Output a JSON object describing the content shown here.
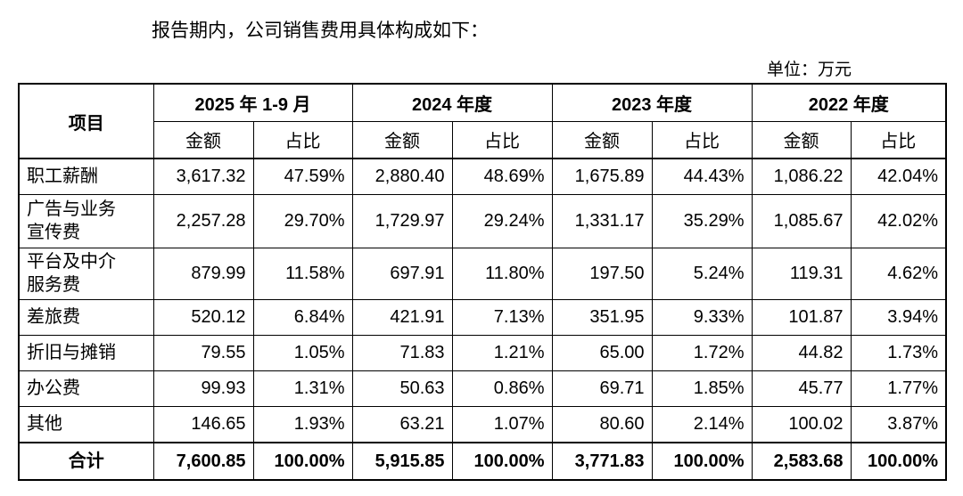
{
  "intro": "报告期内，公司销售费用具体构成如下：",
  "unit": "单位：万元",
  "table": {
    "item_header": "项目",
    "columns": [
      {
        "period": "2025 年 1-9 月",
        "amount": "金额",
        "ratio": "占比"
      },
      {
        "period": "2024 年度",
        "amount": "金额",
        "ratio": "占比"
      },
      {
        "period": "2023 年度",
        "amount": "金额",
        "ratio": "占比"
      },
      {
        "period": "2022 年度",
        "amount": "金额",
        "ratio": "占比"
      }
    ],
    "rows": [
      {
        "label": "职工薪酬",
        "cells": [
          "3,617.32",
          "47.59%",
          "2,880.40",
          "48.69%",
          "1,675.89",
          "44.43%",
          "1,086.22",
          "42.04%"
        ]
      },
      {
        "label": "广告与业务宣传费",
        "cells": [
          "2,257.28",
          "29.70%",
          "1,729.97",
          "29.24%",
          "1,331.17",
          "35.29%",
          "1,085.67",
          "42.02%"
        ]
      },
      {
        "label": "平台及中介服务费",
        "cells": [
          "879.99",
          "11.58%",
          "697.91",
          "11.80%",
          "197.50",
          "5.24%",
          "119.31",
          "4.62%"
        ]
      },
      {
        "label": "差旅费",
        "cells": [
          "520.12",
          "6.84%",
          "421.91",
          "7.13%",
          "351.95",
          "9.33%",
          "101.87",
          "3.94%"
        ]
      },
      {
        "label": "折旧与摊销",
        "cells": [
          "79.55",
          "1.05%",
          "71.83",
          "1.21%",
          "65.00",
          "1.72%",
          "44.82",
          "1.73%"
        ]
      },
      {
        "label": "办公费",
        "cells": [
          "99.93",
          "1.31%",
          "50.63",
          "0.86%",
          "69.71",
          "1.85%",
          "45.77",
          "1.77%"
        ]
      },
      {
        "label": "其他",
        "cells": [
          "146.65",
          "1.93%",
          "63.21",
          "1.07%",
          "80.60",
          "2.14%",
          "100.02",
          "3.87%"
        ]
      }
    ],
    "total": {
      "label": "合计",
      "cells": [
        "7,600.85",
        "100.00%",
        "5,915.85",
        "100.00%",
        "3,771.83",
        "100.00%",
        "2,583.68",
        "100.00%"
      ]
    }
  }
}
